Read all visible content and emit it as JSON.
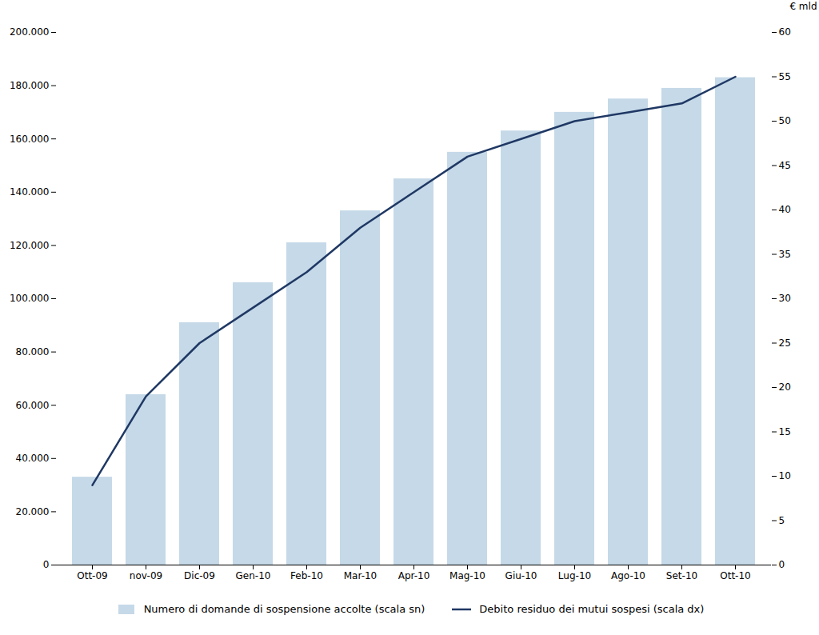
{
  "chart_data": {
    "type": "bar",
    "categories": [
      "Ott-09",
      "nov-09",
      "Dic-09",
      "Gen-10",
      "Feb-10",
      "Mar-10",
      "Apr-10",
      "Mag-10",
      "Giu-10",
      "Lug-10",
      "Ago-10",
      "Set-10",
      "Ott-10"
    ],
    "series": [
      {
        "name": "Numero di domande di sospensione accolte  (scala sn)",
        "type": "bar",
        "color": "#c5d9e8",
        "values": [
          33000,
          64000,
          91000,
          106000,
          121000,
          133000,
          145000,
          155000,
          163000,
          170000,
          175000,
          179000,
          183000
        ]
      },
      {
        "name": "Debito residuo dei mutui sospesi (scala dx)",
        "type": "line",
        "color": "#1f3864",
        "axis": "y2",
        "values": [
          9,
          19,
          25,
          29,
          33,
          38,
          42,
          46,
          48,
          50,
          51,
          52,
          55
        ]
      }
    ],
    "ylim": [
      0,
      200000
    ],
    "yticks": [
      0,
      {
        "value": 20000,
        "label": "20.000"
      },
      {
        "value": 40000,
        "label": "40.000"
      },
      {
        "value": 60000,
        "label": "60.000"
      },
      {
        "value": 80000,
        "label": "80.000"
      },
      {
        "value": 100000,
        "label": "100.000"
      },
      {
        "value": 120000,
        "label": "120.000"
      },
      {
        "value": 140000,
        "label": "140.000"
      },
      {
        "value": 160000,
        "label": "160.000"
      },
      {
        "value": 180000,
        "label": "180.000"
      },
      {
        "value": 200000,
        "label": "200.000"
      }
    ],
    "y2lim": [
      0,
      60
    ],
    "y2ticks": [
      0,
      5,
      10,
      15,
      20,
      25,
      30,
      35,
      40,
      45,
      50,
      55,
      60
    ],
    "y2label": "€ mld",
    "legend": "bottom",
    "grid": false
  }
}
